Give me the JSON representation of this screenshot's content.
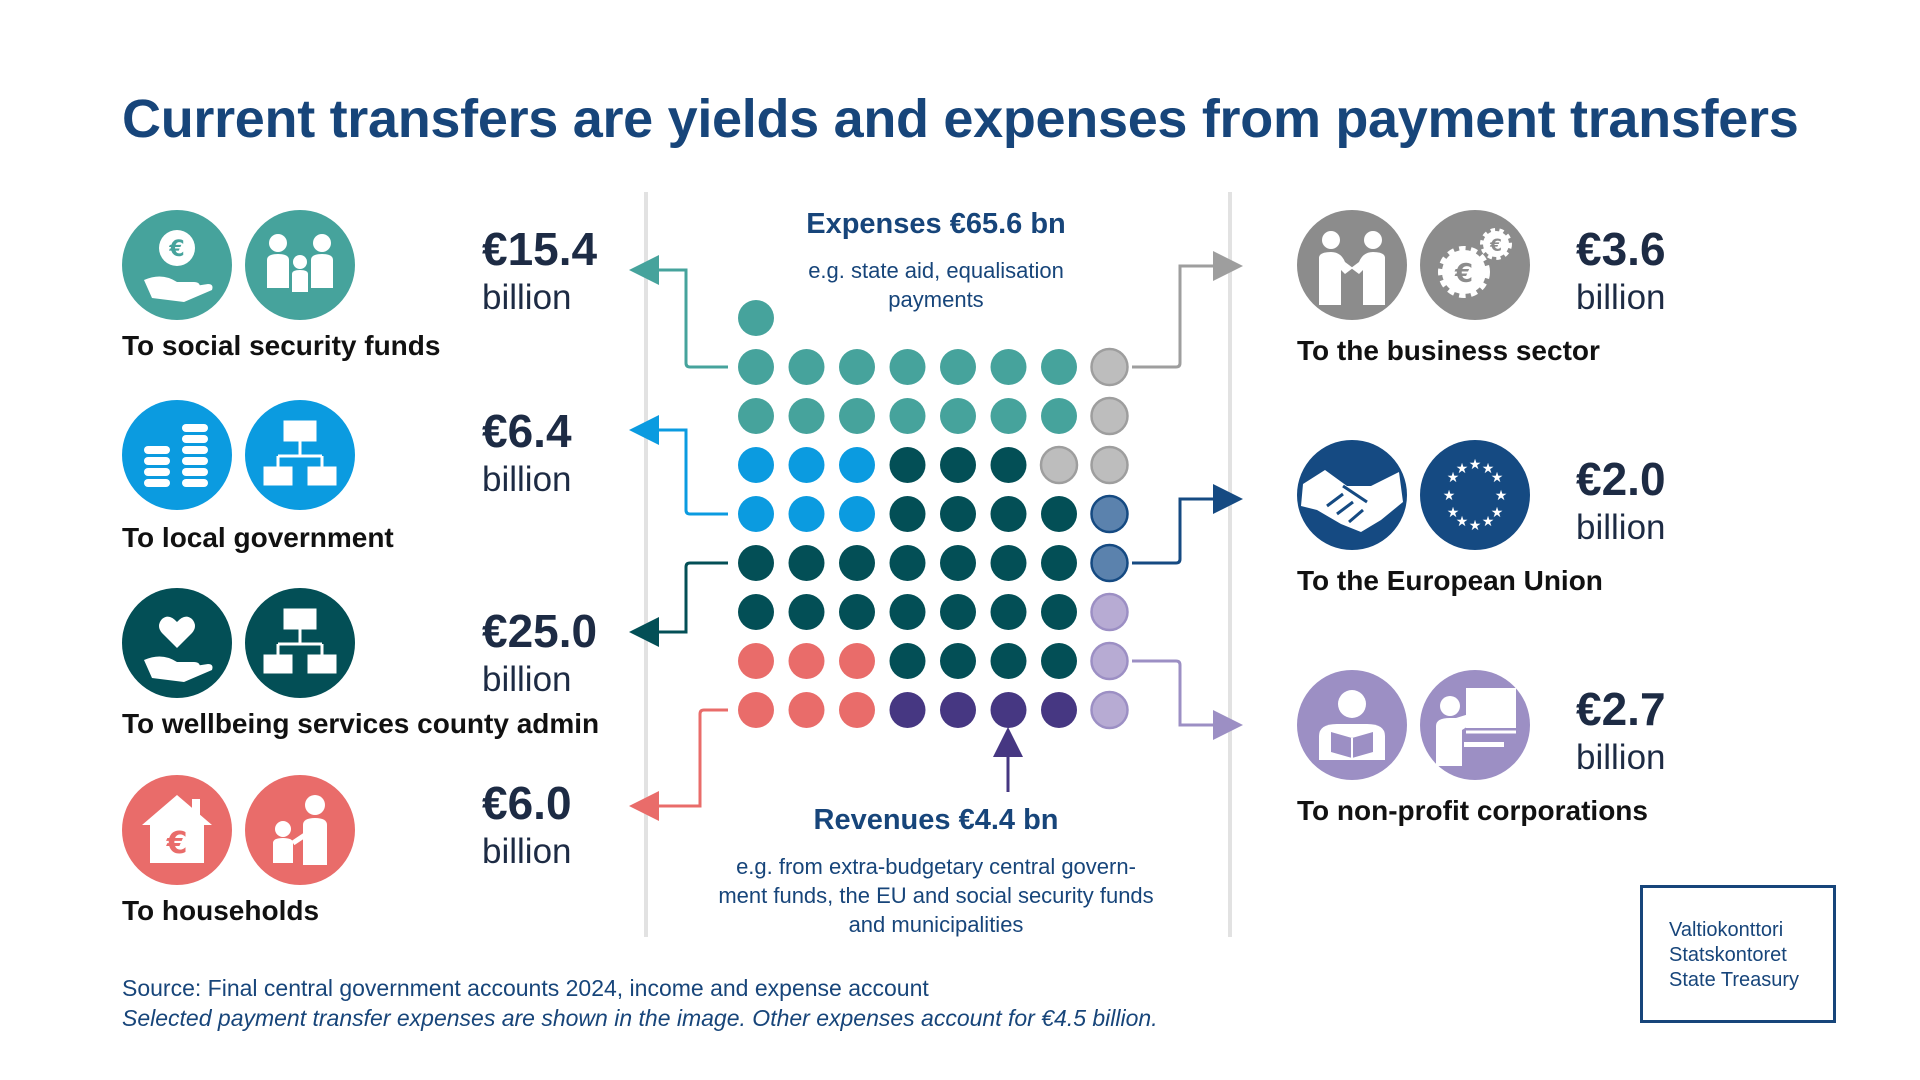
{
  "title": "Current transfers are yields and expenses from payment transfers",
  "expenses": {
    "heading": "Expenses €65.6 bn",
    "note": "e.g. state aid, equalisation payments"
  },
  "revenues": {
    "heading": "Revenues €4.4 bn",
    "note": "e.g. from extra-budgetary central govern-ment funds, the EU and social security funds and municipalities"
  },
  "left_items": [
    {
      "label": "To social security funds",
      "amount": "€15.4",
      "unit": "billion",
      "color": "#46a39c",
      "icons": [
        "euro-in-hand-icon",
        "family-icon"
      ]
    },
    {
      "label": "To local government",
      "amount": "€6.4",
      "unit": "billion",
      "color": "#0b9be0",
      "icons": [
        "coin-stacks-icon",
        "org-chart-icon"
      ]
    },
    {
      "label": "To wellbeing services county admin",
      "amount": "€25.0",
      "unit": "billion",
      "color": "#034f56",
      "icons": [
        "heart-in-hand-icon",
        "org-chart-icon"
      ]
    },
    {
      "label": "To households",
      "amount": "€6.0",
      "unit": "billion",
      "color": "#e96c6a",
      "icons": [
        "house-euro-icon",
        "parent-child-icon"
      ]
    }
  ],
  "right_items": [
    {
      "label": "To the business sector",
      "amount": "€3.6",
      "unit": "billion",
      "color": "#8c8c8c",
      "icons": [
        "business-handshake-icon",
        "euro-gears-icon"
      ]
    },
    {
      "label": "To the European Union",
      "amount": "€2.0",
      "unit": "billion",
      "color": "#154a82",
      "icons": [
        "handshake-icon",
        "eu-flag-icon"
      ]
    },
    {
      "label": "To non-profit corporations",
      "amount": "€2.7",
      "unit": "billion",
      "color": "#9c8fc4",
      "icons": [
        "reading-person-icon",
        "presenter-icon"
      ]
    }
  ],
  "footer": {
    "source": "Source: Final central government accounts 2024, income and expense account",
    "note": "Selected payment transfer expenses are shown in the image. Other expenses account for €4.5 billion."
  },
  "logo": {
    "lines": [
      "Valtiokonttori",
      "Statskontoret",
      "State Treasury"
    ]
  },
  "colors": {
    "title": "#17457a",
    "social_security": "#46a39c",
    "local_government": "#0b9be0",
    "wellbeing": "#034f56",
    "households": "#e96c6a",
    "business": "#bdbdbd",
    "eu": "#5b82ad",
    "non_profit": "#b7abd3",
    "revenues": "#463782"
  },
  "dot_grid": {
    "rows": [
      [
        "S"
      ],
      [
        "S",
        "S",
        "S",
        "S",
        "S",
        "S",
        "S",
        "B"
      ],
      [
        "S",
        "S",
        "S",
        "S",
        "S",
        "S",
        "S",
        "B"
      ],
      [
        "L",
        "L",
        "L",
        "W",
        "W",
        "W",
        "B",
        "B"
      ],
      [
        "L",
        "L",
        "L",
        "W",
        "W",
        "W",
        "W",
        "E"
      ],
      [
        "W",
        "W",
        "W",
        "W",
        "W",
        "W",
        "W",
        "E"
      ],
      [
        "W",
        "W",
        "W",
        "W",
        "W",
        "W",
        "W",
        "N"
      ],
      [
        "H",
        "H",
        "H",
        "W",
        "W",
        "W",
        "W",
        "N"
      ],
      [
        "H",
        "H",
        "H",
        "R",
        "R",
        "R",
        "R",
        "N"
      ]
    ],
    "legend": {
      "S": "social_security",
      "L": "local_government",
      "W": "wellbeing",
      "H": "households",
      "B": "business",
      "E": "eu",
      "N": "non_profit",
      "R": "revenues"
    }
  }
}
